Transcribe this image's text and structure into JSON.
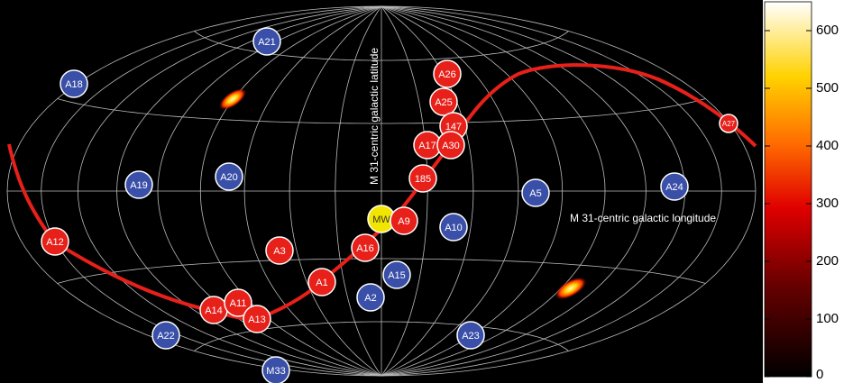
{
  "axes": {
    "latitude_label": "M 31-centric galactic latitude",
    "longitude_label": "M 31-centric galactic longitude"
  },
  "markers": [
    "A21",
    "A18",
    "A26",
    "A25",
    "147",
    "A17",
    "A30",
    "A27",
    "185",
    "A19",
    "A20",
    "A5",
    "A24",
    "MW",
    "A9",
    "A10",
    "A12",
    "A3",
    "A16",
    "A15",
    "A1",
    "A2",
    "A14",
    "A11",
    "A13",
    "A22",
    "A23",
    "M33"
  ],
  "colorbar": {
    "lim": [
      0,
      650
    ],
    "ticks": [
      0,
      100,
      200,
      300,
      400,
      500,
      600
    ]
  }
}
